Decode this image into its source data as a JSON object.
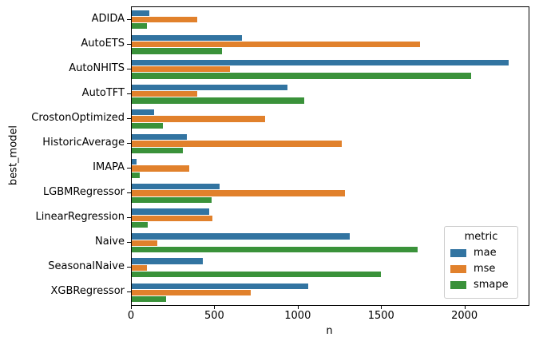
{
  "chart_data": {
    "type": "bar",
    "orientation": "horizontal",
    "xlabel": "n",
    "ylabel": "best_model",
    "xlim": [
      0,
      2380
    ],
    "xticks": [
      0,
      500,
      1000,
      1500,
      2000
    ],
    "grid": false,
    "legend": {
      "title": "metric",
      "position": "lower right"
    },
    "categories": [
      "ADIDA",
      "AutoETS",
      "AutoNHITS",
      "AutoTFT",
      "CrostonOptimized",
      "HistoricAverage",
      "IMAPA",
      "LGBMRegressor",
      "LinearRegression",
      "Naive",
      "SeasonalNaive",
      "XGBRegressor"
    ],
    "series": [
      {
        "name": "mae",
        "color": "#3274a1",
        "values": [
          105,
          660,
          2260,
          935,
          135,
          330,
          30,
          525,
          465,
          1305,
          425,
          1060
        ]
      },
      {
        "name": "mse",
        "color": "#e1812c",
        "values": [
          395,
          1730,
          590,
          395,
          800,
          1260,
          345,
          1280,
          485,
          155,
          90,
          715
        ]
      },
      {
        "name": "smape",
        "color": "#3a923a",
        "values": [
          90,
          540,
          2035,
          1035,
          185,
          305,
          50,
          480,
          95,
          1715,
          1495,
          205
        ]
      }
    ]
  }
}
